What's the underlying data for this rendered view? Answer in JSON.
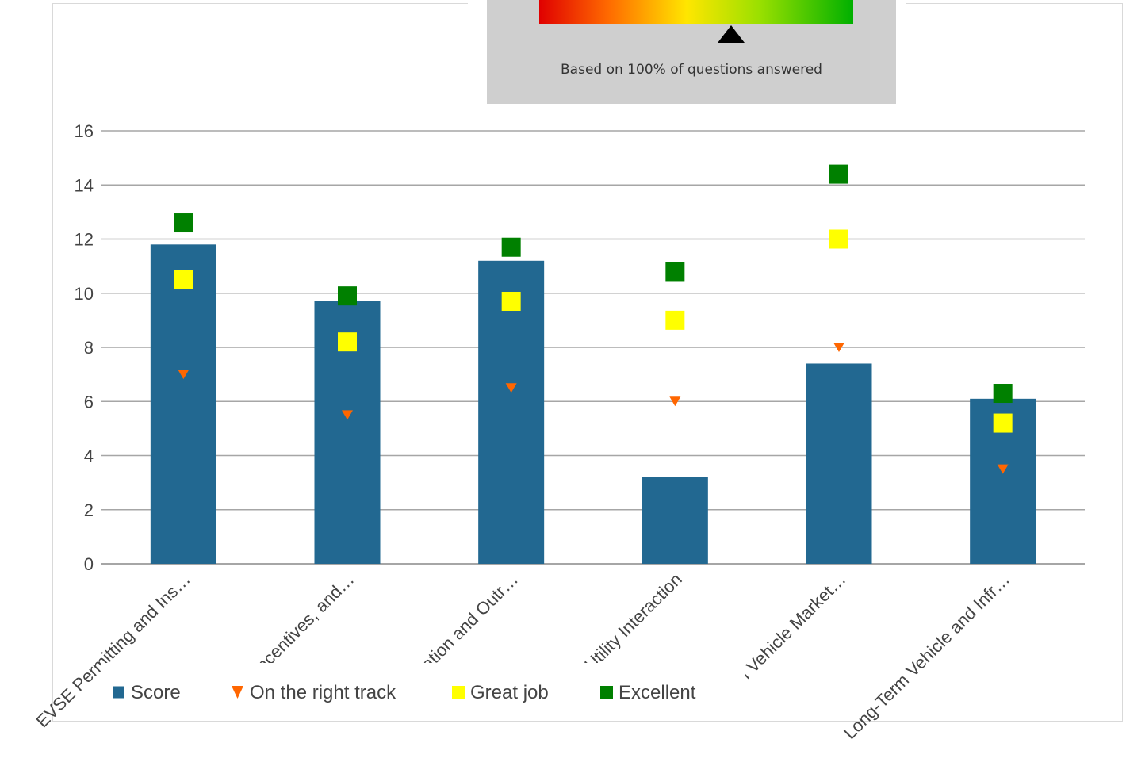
{
  "gauge": {
    "caption": "Based on 100% of questions answered",
    "pointer_value": 0.61
  },
  "colors": {
    "score": "#226891",
    "on_track": "#ff6600",
    "great": "#ffff00",
    "excellent": "#008000",
    "grid": "#a6a6a6",
    "panel": "#cfcfcf"
  },
  "chart_data": {
    "type": "bar",
    "categories": [
      "EVSE Permitting and Ins…",
      "EV Incentives, and…",
      "Education and Outr…",
      "Utility Interaction",
      "Plug-in Vehicle Market…",
      "Long-Term Vehicle and Infr…"
    ],
    "series": [
      {
        "name": "Score",
        "kind": "bar",
        "values": [
          11.8,
          9.7,
          11.2,
          3.2,
          7.4,
          6.1
        ]
      },
      {
        "name": "On the right track",
        "kind": "marker",
        "marker": "triangle-down",
        "values": [
          7.0,
          5.5,
          6.5,
          6.0,
          8.0,
          3.5
        ]
      },
      {
        "name": "Great job",
        "kind": "marker",
        "marker": "square",
        "values": [
          10.5,
          8.2,
          9.7,
          9.0,
          12.0,
          5.2
        ]
      },
      {
        "name": "Excellent",
        "kind": "marker",
        "marker": "square",
        "values": [
          12.6,
          9.9,
          11.7,
          10.8,
          14.4,
          6.3
        ]
      }
    ],
    "yticks": [
      "0",
      "2",
      "4",
      "6",
      "8",
      "10",
      "12",
      "14",
      "16"
    ],
    "ylim": [
      0,
      16
    ],
    "grid": true,
    "legend_position": "bottom-left"
  }
}
